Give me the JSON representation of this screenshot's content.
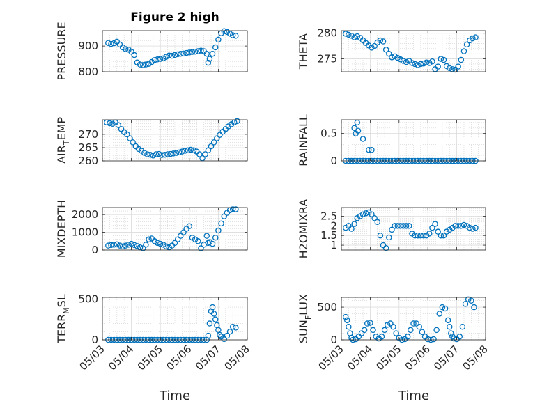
{
  "figure_title": "Figure 2 high",
  "x_axis_label": "Time",
  "x_ticks": [
    "05/03",
    "05/04",
    "05/05",
    "05/06",
    "05/07",
    "05/08"
  ],
  "marker_color": "#0072BD",
  "chart_data": [
    {
      "type": "scatter",
      "title": "Figure 2 high",
      "ylabel": "PRESSURE",
      "ylim": [
        800,
        960
      ],
      "yticks": [
        800,
        900
      ],
      "ytick_labels": [
        "800",
        "900"
      ],
      "xlabel": "",
      "x_range_days": [
        0,
        5
      ],
      "x": [
        0.2,
        0.3,
        0.4,
        0.5,
        0.6,
        0.7,
        0.8,
        0.9,
        1.0,
        1.1,
        1.2,
        1.3,
        1.4,
        1.5,
        1.6,
        1.7,
        1.8,
        1.9,
        2.0,
        2.1,
        2.2,
        2.3,
        2.4,
        2.5,
        2.6,
        2.7,
        2.8,
        2.9,
        3.0,
        3.1,
        3.2,
        3.3,
        3.4,
        3.5,
        3.6,
        3.65,
        3.7,
        3.8,
        3.9,
        4.0,
        4.1,
        4.2,
        4.3,
        4.4,
        4.5,
        4.6
      ],
      "y": [
        912,
        908,
        911,
        917,
        906,
        895,
        888,
        886,
        878,
        865,
        836,
        828,
        826,
        828,
        831,
        838,
        845,
        848,
        850,
        852,
        858,
        863,
        862,
        865,
        868,
        870,
        871,
        873,
        875,
        877,
        878,
        880,
        882,
        880,
        870,
        835,
        850,
        870,
        895,
        925,
        950,
        958,
        955,
        948,
        942,
        940
      ]
    },
    {
      "type": "scatter",
      "ylabel": "THETA",
      "ylim": [
        272.5,
        280.5
      ],
      "yticks": [
        275,
        280
      ],
      "ytick_labels": [
        "275",
        "280"
      ],
      "xlabel": "",
      "x_range_days": [
        0,
        5
      ],
      "x": [
        0.15,
        0.25,
        0.35,
        0.45,
        0.55,
        0.65,
        0.75,
        0.85,
        0.95,
        1.05,
        1.15,
        1.25,
        1.35,
        1.45,
        1.55,
        1.65,
        1.75,
        1.85,
        1.95,
        2.05,
        2.15,
        2.25,
        2.35,
        2.45,
        2.55,
        2.65,
        2.75,
        2.85,
        2.95,
        3.05,
        3.15,
        3.25,
        3.35,
        3.45,
        3.55,
        3.65,
        3.75,
        3.85,
        3.95,
        4.05,
        4.15,
        4.25,
        4.35,
        4.45,
        4.55,
        4.65
      ],
      "y": [
        279.9,
        279.7,
        279.5,
        279.2,
        279.4,
        279.1,
        278.6,
        278.1,
        277.6,
        277.2,
        277.5,
        278.2,
        278.6,
        278.4,
        276.8,
        276.0,
        275.3,
        275.5,
        275.2,
        274.9,
        274.6,
        274.4,
        274.6,
        274.2,
        274.0,
        273.8,
        274.0,
        274.1,
        274.3,
        274.2,
        274.5,
        273.0,
        273.5,
        275.0,
        274.8,
        273.6,
        273.2,
        273.0,
        272.9,
        273.5,
        274.8,
        276.5,
        277.8,
        278.6,
        279.0,
        279.2
      ]
    },
    {
      "type": "scatter",
      "ylabel": "AIR_TEMP",
      "ylabel_main": "AIR",
      "ylabel_sub": "T",
      "ylabel_rest": "EMP",
      "ylim": [
        260,
        275.5
      ],
      "yticks": [
        260,
        265,
        270
      ],
      "ytick_labels": [
        "260",
        "265",
        "270"
      ],
      "xlabel": "",
      "x_range_days": [
        0,
        5
      ],
      "x": [
        0.15,
        0.25,
        0.35,
        0.45,
        0.55,
        0.65,
        0.75,
        0.85,
        0.95,
        1.05,
        1.15,
        1.25,
        1.35,
        1.45,
        1.55,
        1.65,
        1.75,
        1.85,
        1.95,
        2.05,
        2.15,
        2.25,
        2.35,
        2.45,
        2.55,
        2.65,
        2.75,
        2.85,
        2.95,
        3.05,
        3.15,
        3.25,
        3.35,
        3.45,
        3.55,
        3.65,
        3.75,
        3.85,
        3.95,
        4.05,
        4.15,
        4.25,
        4.35,
        4.45,
        4.55,
        4.65
      ],
      "y": [
        274.5,
        274.2,
        274.0,
        274.5,
        273.5,
        272.0,
        270.8,
        270.0,
        268.5,
        267.0,
        265.5,
        264.5,
        263.8,
        263.0,
        262.5,
        262.3,
        262.0,
        262.5,
        262.6,
        262.2,
        262.3,
        262.5,
        262.6,
        262.8,
        263.0,
        263.2,
        263.5,
        263.8,
        264.0,
        264.2,
        264.0,
        263.5,
        262.5,
        261.0,
        262.5,
        264.0,
        265.5,
        267.0,
        268.5,
        269.8,
        271.0,
        272.0,
        273.0,
        273.8,
        274.5,
        275.0
      ]
    },
    {
      "type": "scatter",
      "ylabel": "RAINFALL",
      "ylim": [
        0,
        0.75
      ],
      "yticks": [
        0,
        0.5
      ],
      "ytick_labels": [
        "0",
        "0.5"
      ],
      "xlabel": "",
      "x_range_days": [
        0,
        5
      ],
      "x": [
        0.15,
        0.25,
        0.35,
        0.45,
        0.55,
        0.65,
        0.75,
        0.85,
        0.95,
        1.05,
        1.15,
        1.25,
        1.35,
        1.45,
        1.55,
        1.65,
        1.75,
        1.85,
        1.95,
        2.05,
        2.15,
        2.25,
        2.35,
        2.45,
        2.55,
        2.65,
        2.75,
        2.85,
        2.95,
        3.05,
        3.15,
        3.25,
        3.35,
        3.45,
        3.55,
        3.65,
        3.75,
        3.85,
        3.95,
        4.05,
        4.15,
        4.25,
        4.35,
        4.45,
        4.55,
        4.65,
        0.45,
        0.5,
        0.55,
        0.58,
        0.75,
        0.95,
        1.05
      ],
      "y": [
        0,
        0,
        0,
        0,
        0,
        0,
        0,
        0,
        0,
        0,
        0,
        0,
        0,
        0,
        0,
        0,
        0,
        0,
        0,
        0,
        0,
        0,
        0,
        0,
        0,
        0,
        0,
        0,
        0,
        0,
        0,
        0,
        0,
        0,
        0,
        0,
        0,
        0,
        0,
        0,
        0,
        0,
        0,
        0,
        0,
        0,
        0.6,
        0.5,
        0.7,
        0.55,
        0.4,
        0.2,
        0.2
      ]
    },
    {
      "type": "scatter",
      "ylabel": "MIXDEPTH",
      "ylim": [
        0,
        2400
      ],
      "yticks": [
        0,
        1000,
        2000
      ],
      "ytick_labels": [
        "0",
        "1000",
        "2000"
      ],
      "xlabel": "",
      "x_range_days": [
        0,
        5
      ],
      "x": [
        0.2,
        0.3,
        0.4,
        0.5,
        0.6,
        0.7,
        0.8,
        0.9,
        1.0,
        1.1,
        1.2,
        1.3,
        1.4,
        1.5,
        1.6,
        1.7,
        1.8,
        1.9,
        2.0,
        2.1,
        2.2,
        2.3,
        2.4,
        2.5,
        2.6,
        2.7,
        2.8,
        2.9,
        3.0,
        3.1,
        3.2,
        3.3,
        3.4,
        3.5,
        3.6,
        3.65,
        3.7,
        3.8,
        3.9,
        4.0,
        4.1,
        4.2,
        4.3,
        4.4,
        4.5,
        4.6
      ],
      "y": [
        250,
        280,
        300,
        320,
        250,
        200,
        250,
        300,
        350,
        280,
        220,
        150,
        100,
        300,
        600,
        650,
        500,
        400,
        350,
        300,
        200,
        150,
        250,
        400,
        600,
        800,
        1000,
        1200,
        1350,
        700,
        600,
        500,
        100,
        300,
        800,
        400,
        450,
        350,
        700,
        1100,
        1500,
        1900,
        2100,
        2250,
        2300,
        2300
      ]
    },
    {
      "type": "scatter",
      "ylabel": "H2OMIXRA",
      "ylim": [
        0.75,
        2.95
      ],
      "yticks": [
        1,
        1.5,
        2,
        2.5
      ],
      "ytick_labels": [
        "1",
        "1.5",
        "2",
        "2.5"
      ],
      "xlabel": "",
      "x_range_days": [
        0,
        5
      ],
      "x": [
        0.15,
        0.25,
        0.35,
        0.45,
        0.55,
        0.65,
        0.75,
        0.85,
        0.95,
        1.05,
        1.15,
        1.25,
        1.35,
        1.45,
        1.55,
        1.65,
        1.75,
        1.85,
        1.95,
        2.05,
        2.15,
        2.25,
        2.35,
        2.45,
        2.55,
        2.65,
        2.75,
        2.85,
        2.95,
        3.05,
        3.15,
        3.25,
        3.35,
        3.45,
        3.55,
        3.65,
        3.75,
        3.85,
        3.95,
        4.05,
        4.15,
        4.25,
        4.35,
        4.45,
        4.55,
        4.65
      ],
      "y": [
        1.9,
        2.0,
        1.85,
        2.1,
        2.4,
        2.5,
        2.6,
        2.65,
        2.7,
        2.6,
        2.4,
        2.2,
        1.5,
        1.0,
        0.85,
        1.4,
        1.8,
        2.0,
        2.0,
        2.0,
        2.0,
        2.0,
        2.0,
        1.6,
        1.5,
        1.5,
        1.5,
        1.5,
        1.5,
        1.6,
        1.9,
        2.1,
        1.7,
        1.5,
        1.5,
        1.7,
        1.8,
        1.9,
        2.0,
        2.0,
        2.0,
        2.05,
        2.0,
        1.9,
        1.85,
        1.9
      ]
    },
    {
      "type": "scatter",
      "ylabel": "TERR_MSL",
      "ylabel_main": "TERR",
      "ylabel_sub": "M",
      "ylabel_rest": "SL",
      "ylim": [
        0,
        520
      ],
      "yticks": [
        0,
        500
      ],
      "ytick_labels": [
        "0",
        "500"
      ],
      "xlabel": "Time",
      "x_range_days": [
        0,
        5
      ],
      "x": [
        0.2,
        0.3,
        0.4,
        0.5,
        0.6,
        0.7,
        0.8,
        0.9,
        1.0,
        1.1,
        1.2,
        1.3,
        1.4,
        1.5,
        1.6,
        1.7,
        1.8,
        1.9,
        2.0,
        2.1,
        2.2,
        2.3,
        2.4,
        2.5,
        2.6,
        2.7,
        2.8,
        2.9,
        3.0,
        3.1,
        3.2,
        3.3,
        3.4,
        3.5,
        3.6,
        3.65,
        3.7,
        3.75,
        3.8,
        3.85,
        3.9,
        3.95,
        4.0,
        4.05,
        4.1,
        4.2,
        4.3,
        4.4,
        4.5,
        4.6
      ],
      "y": [
        0,
        0,
        0,
        0,
        0,
        0,
        0,
        0,
        0,
        0,
        0,
        0,
        0,
        0,
        0,
        0,
        0,
        0,
        0,
        0,
        0,
        0,
        0,
        0,
        0,
        0,
        0,
        0,
        0,
        0,
        0,
        0,
        0,
        0,
        0,
        50,
        200,
        350,
        400,
        320,
        250,
        180,
        120,
        60,
        40,
        10,
        50,
        100,
        160,
        150
      ]
    },
    {
      "type": "scatter",
      "ylabel": "SUN_FLUX",
      "ylabel_main": "SUN",
      "ylabel_sub": "F",
      "ylabel_rest": "LUX",
      "ylim": [
        0,
        650
      ],
      "yticks": [
        0,
        500
      ],
      "ytick_labels": [
        "0",
        "500"
      ],
      "xlabel": "Time",
      "x_range_days": [
        0,
        5
      ],
      "x": [
        0.15,
        0.2,
        0.25,
        0.3,
        0.35,
        0.4,
        0.5,
        0.6,
        0.7,
        0.8,
        0.9,
        1.0,
        1.1,
        1.2,
        1.3,
        1.4,
        1.5,
        1.6,
        1.7,
        1.8,
        1.9,
        2.0,
        2.1,
        2.2,
        2.3,
        2.4,
        2.5,
        2.6,
        2.7,
        2.8,
        2.9,
        3.0,
        3.1,
        3.2,
        3.3,
        3.4,
        3.5,
        3.6,
        3.7,
        3.75,
        3.8,
        3.85,
        3.9,
        4.0,
        4.1,
        4.2,
        4.3,
        4.4,
        4.5,
        4.6
      ],
      "y": [
        350,
        300,
        200,
        100,
        30,
        0,
        10,
        50,
        100,
        150,
        250,
        260,
        150,
        50,
        20,
        50,
        150,
        230,
        250,
        200,
        100,
        30,
        0,
        10,
        50,
        150,
        250,
        250,
        200,
        120,
        50,
        10,
        0,
        10,
        150,
        400,
        500,
        480,
        300,
        200,
        100,
        50,
        20,
        10,
        50,
        200,
        550,
        620,
        600,
        500
      ]
    }
  ]
}
